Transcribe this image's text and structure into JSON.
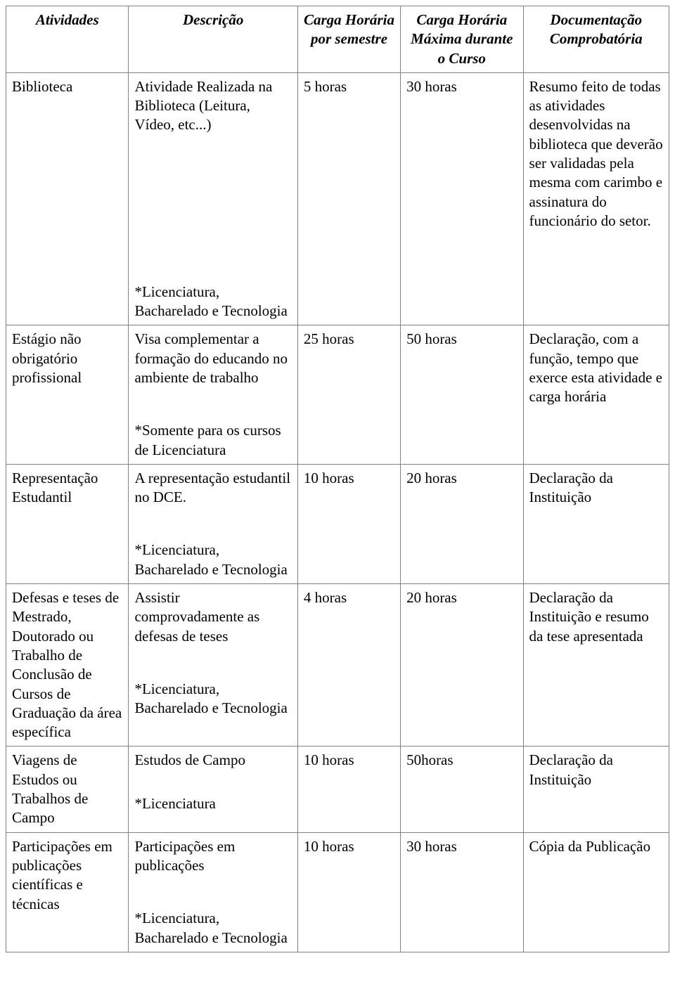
{
  "columns": [
    "Atividades",
    "Descrição",
    "Carga Horária por semestre",
    "Carga Horária Máxima durante o Curso",
    "Documentação Comprobatória"
  ],
  "rows": [
    {
      "atividade": "Biblioteca",
      "descricao": "Atividade Realizada na Biblioteca (Leitura, Vídeo, etc...)",
      "nota": "*Licenciatura, Bacharelado e Tecnologia",
      "carga_sem": "5 horas",
      "carga_max": "30 horas",
      "doc": "Resumo feito de todas as atividades desenvolvidas na biblioteca que deverão ser validadas pela mesma com carimbo e assinatura do funcionário do setor.",
      "spacer": "spacer-lg"
    },
    {
      "atividade": "Estágio não obrigatório profissional",
      "descricao": "Visa complementar a formação do educando no ambiente de trabalho",
      "nota": "*Somente para os cursos de Licenciatura",
      "carga_sem": "25 horas",
      "carga_max": "50 horas",
      "doc": "Declaração, com a função, tempo que exerce esta atividade e carga horária",
      "spacer": "spacer-md"
    },
    {
      "atividade": "Representação Estudantil",
      "descricao": "A representação estudantil no DCE.",
      "nota": "*Licenciatura, Bacharelado e Tecnologia",
      "carga_sem": "10 horas",
      "carga_max": "20 horas",
      "doc": "Declaração da Instituição",
      "spacer": "spacer-md"
    },
    {
      "atividade": "Defesas e teses de Mestrado, Doutorado ou Trabalho de Conclusão de Cursos de Graduação da área específica",
      "descricao": "Assistir comprovadamente as defesas de teses",
      "nota": "*Licenciatura, Bacharelado e Tecnologia",
      "carga_sem": "4 horas",
      "carga_max": "20 horas",
      "doc": "Declaração da Instituição e resumo da tese apresentada",
      "spacer": "spacer-md"
    },
    {
      "atividade": "Viagens de Estudos ou Trabalhos de Campo",
      "descricao": "Estudos de Campo",
      "nota": "*Licenciatura",
      "carga_sem": "10 horas",
      "carga_max": "50horas",
      "doc": "Declaração da Instituição",
      "spacer": "spacer-sm"
    },
    {
      "atividade": "Participações em publicações científicas e técnicas",
      "descricao": "Participações em publicações",
      "nota": "*Licenciatura, Bacharelado e Tecnologia",
      "carga_sem": "10 horas",
      "carga_max": "30 horas",
      "doc": "Cópia da Publicação",
      "spacer": "spacer-md"
    }
  ]
}
